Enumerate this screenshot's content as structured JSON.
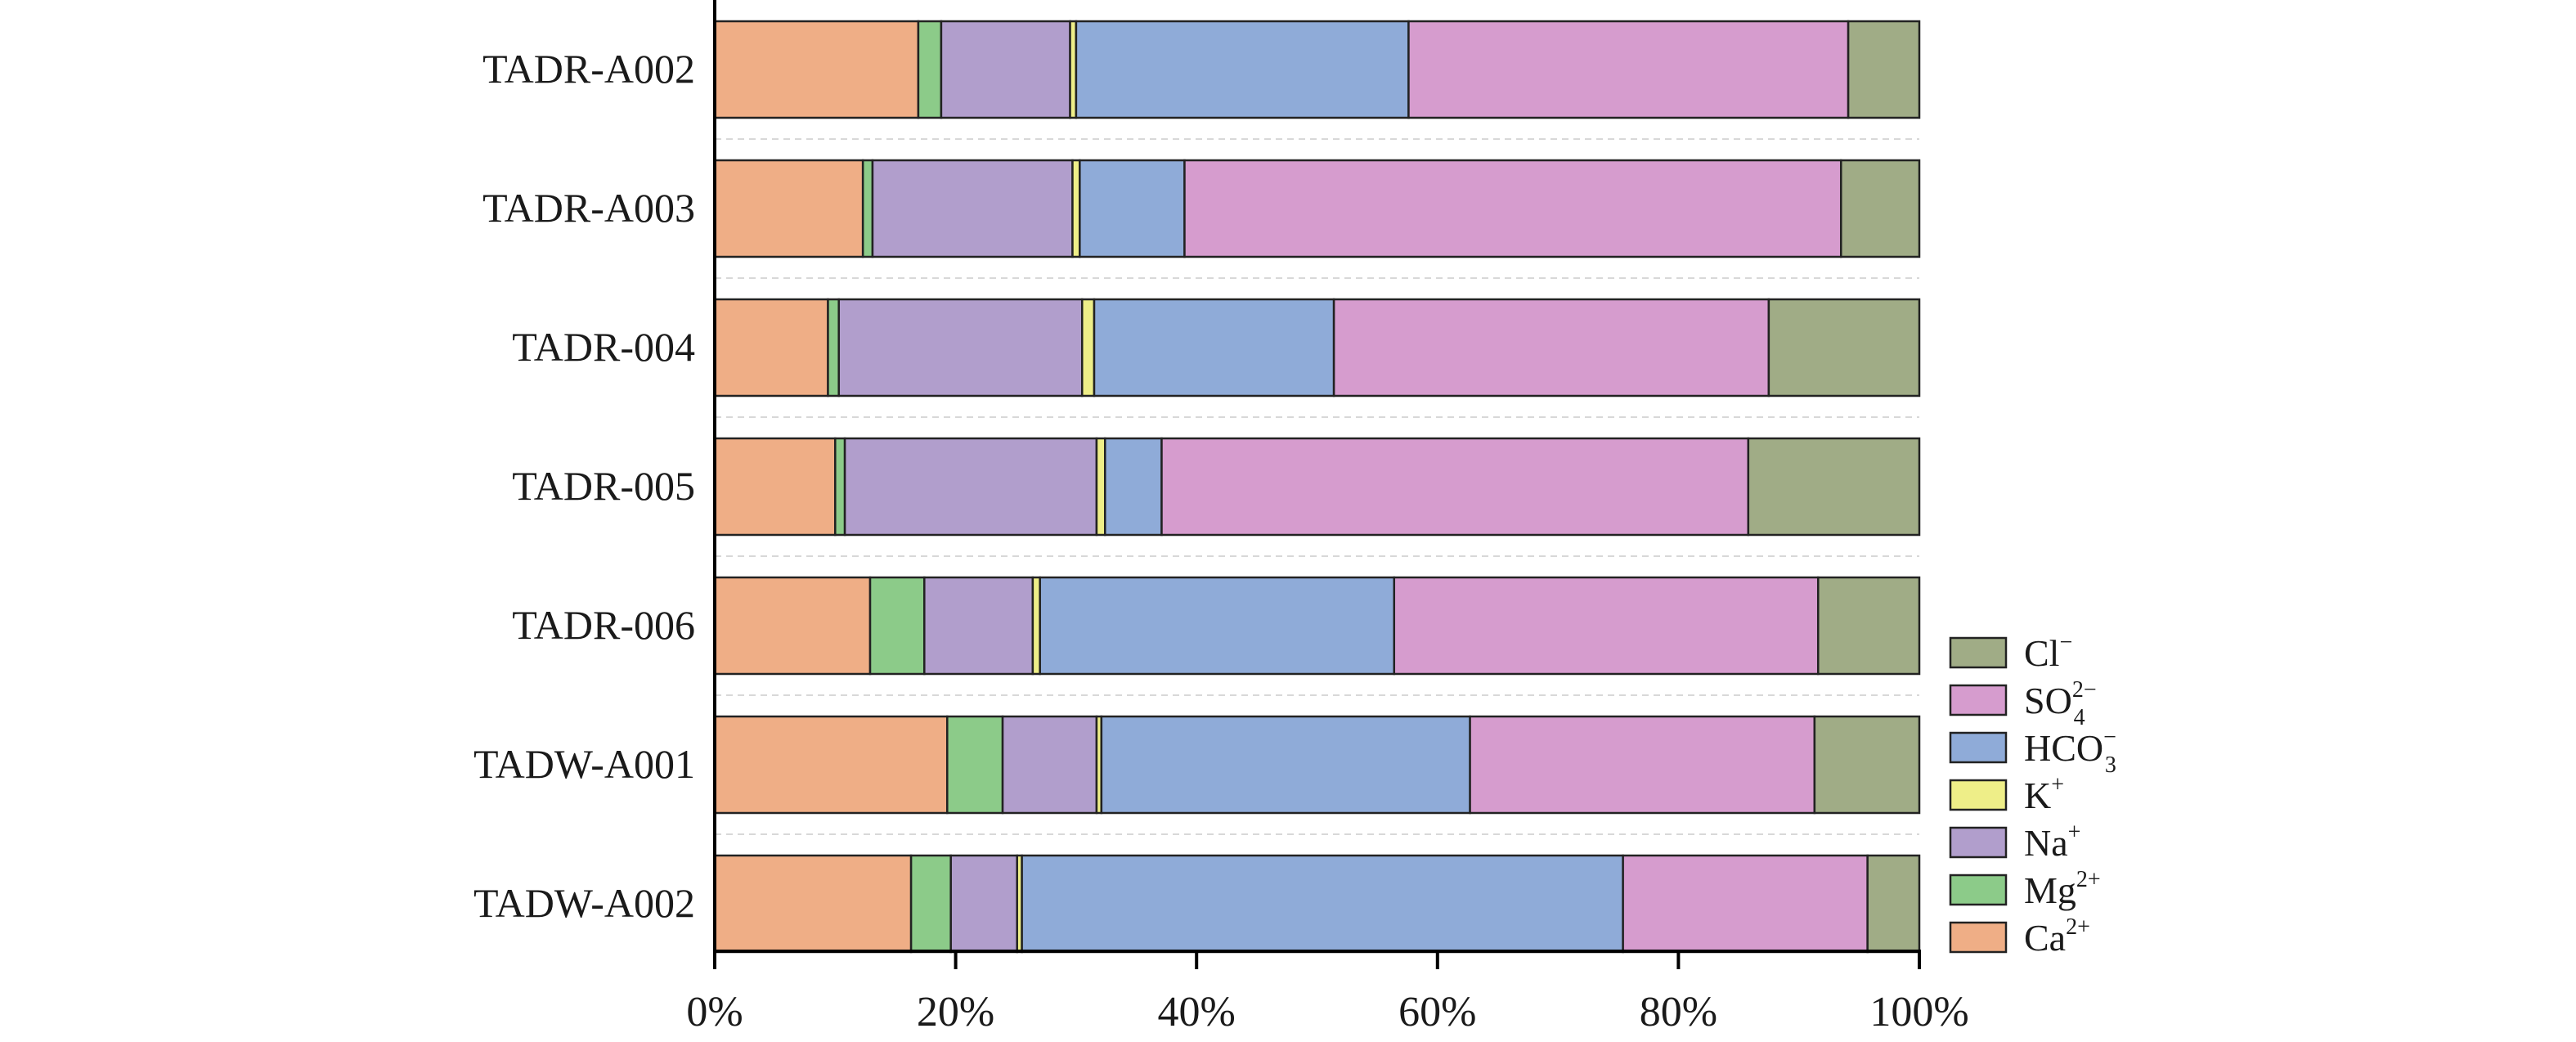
{
  "chart_data": {
    "type": "bar",
    "orientation": "horizontal",
    "stacked": true,
    "title": "",
    "xlabel": "",
    "ylabel": "",
    "xlim": [
      0,
      100
    ],
    "x_ticks": [
      "0%",
      "20%",
      "40%",
      "60%",
      "80%",
      "100%"
    ],
    "grid": "dashed horizontal separators between bars",
    "legend_position": "right-bottom",
    "categories": [
      "TADR-A002",
      "TADR-A003",
      "TADR-004",
      "TADR-005",
      "TADR-006",
      "TADW-A001",
      "TADW-A002"
    ],
    "series": [
      {
        "name": "Ca²⁺",
        "base": "Ca",
        "sup": "2+",
        "sub": "",
        "color": "#EFAE86",
        "values": [
          16.9,
          12.3,
          9.4,
          10.0,
          12.9,
          19.3,
          16.3
        ]
      },
      {
        "name": "Mg²⁺",
        "base": "Mg",
        "sup": "2+",
        "sub": "",
        "color": "#8CCB89",
        "values": [
          1.9,
          0.8,
          0.9,
          0.8,
          4.5,
          4.6,
          3.3
        ]
      },
      {
        "name": "Na⁺",
        "base": "Na",
        "sup": "+",
        "sub": "",
        "color": "#B19ECC",
        "values": [
          10.7,
          16.6,
          20.2,
          20.9,
          9.0,
          7.8,
          5.5
        ]
      },
      {
        "name": "K⁺",
        "base": "K",
        "sup": "+",
        "sub": "",
        "color": "#EEEE88",
        "values": [
          0.5,
          0.6,
          1.0,
          0.7,
          0.6,
          0.4,
          0.4
        ]
      },
      {
        "name": "HCO₃⁻",
        "base": "HCO",
        "sup": "−",
        "sub": "3",
        "color": "#8FABD8",
        "values": [
          27.6,
          8.7,
          19.9,
          4.7,
          29.4,
          30.6,
          49.9
        ]
      },
      {
        "name": "SO₄²⁻",
        "base": "SO",
        "sup": "2−",
        "sub": "4",
        "color": "#D69CCE",
        "values": [
          36.5,
          54.5,
          36.1,
          48.7,
          35.2,
          28.6,
          20.3
        ]
      },
      {
        "name": "Cl⁻",
        "base": "Cl",
        "sup": "−",
        "sub": "",
        "color": "#A0AC86",
        "values": [
          5.9,
          6.5,
          12.5,
          14.2,
          8.4,
          8.7,
          4.3
        ]
      }
    ]
  }
}
